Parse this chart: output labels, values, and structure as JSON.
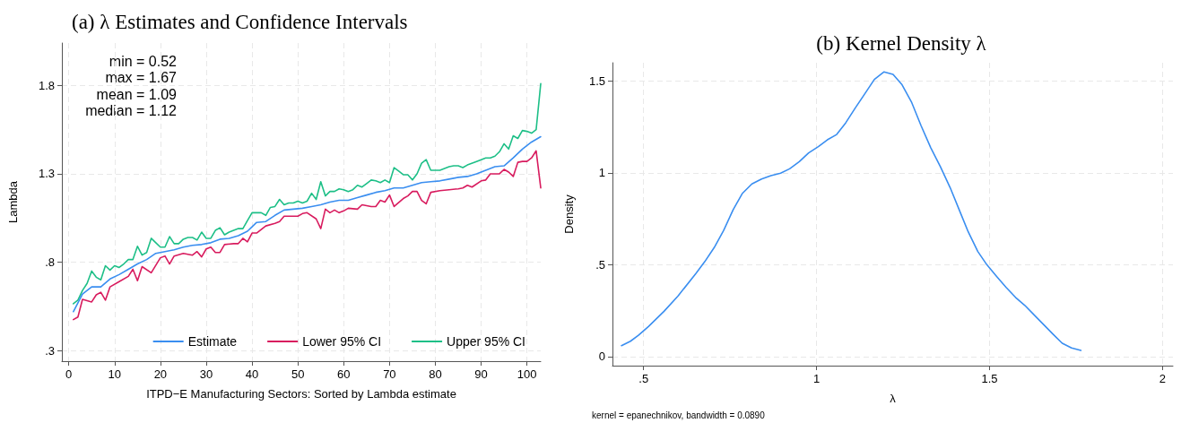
{
  "chart_data": [
    {
      "type": "line",
      "title": "(a) λ Estimates and Confidence Intervals",
      "xlabel": "ITPD−E Manufacturing Sectors: Sorted by Lambda estimate",
      "ylabel": "Lambda",
      "annotations": [
        "min = 0.52",
        "max = 1.67",
        "mean = 1.09",
        "median = 1.12"
      ],
      "xlim": [
        -1.5,
        103
      ],
      "xticks": [
        0,
        10,
        20,
        30,
        40,
        50,
        60,
        70,
        80,
        90,
        100
      ],
      "ylim": [
        0.24,
        2.04
      ],
      "yticks": [
        {
          "value": 0.3,
          "label": ".3"
        },
        {
          "value": 0.8,
          "label": ".8"
        },
        1.3,
        1.8
      ],
      "grid": true,
      "legend": "bottom right",
      "marker": "none",
      "line_style": "solid",
      "series": [
        {
          "name": "Estimate",
          "color": "#3a8ef0",
          "x": [
            1,
            3,
            5,
            7,
            9,
            11,
            13,
            15,
            17,
            19,
            21,
            23,
            25,
            27,
            29,
            31,
            33,
            35,
            37,
            39,
            41,
            43,
            45,
            47,
            49,
            51,
            53,
            55,
            57,
            59,
            61,
            63,
            65,
            67,
            69,
            71,
            73,
            75,
            77,
            79,
            81,
            83,
            85,
            87,
            89,
            91,
            93,
            95,
            97,
            99,
            101,
            103
          ],
          "values": [
            0.52,
            0.62,
            0.66,
            0.66,
            0.705,
            0.73,
            0.76,
            0.79,
            0.815,
            0.85,
            0.86,
            0.87,
            0.885,
            0.895,
            0.9,
            0.91,
            0.93,
            0.935,
            0.95,
            0.975,
            1.025,
            1.03,
            1.065,
            1.095,
            1.1,
            1.105,
            1.115,
            1.125,
            1.14,
            1.15,
            1.15,
            1.165,
            1.18,
            1.195,
            1.205,
            1.22,
            1.22,
            1.235,
            1.25,
            1.255,
            1.26,
            1.27,
            1.28,
            1.285,
            1.3,
            1.32,
            1.34,
            1.345,
            1.39,
            1.44,
            1.48,
            1.51
          ]
        },
        {
          "name": "Lower 95% CI",
          "color": "#d81b5e",
          "x": [
            1,
            2,
            3,
            5,
            6,
            7,
            8,
            9,
            11,
            13,
            14,
            15,
            16,
            18,
            20,
            21,
            22,
            23,
            25,
            27,
            28,
            29,
            30,
            31,
            32,
            33,
            34,
            36,
            37,
            38,
            39,
            40,
            41,
            43,
            45,
            46,
            47,
            49,
            50,
            51,
            52,
            54,
            55,
            56,
            57,
            58,
            59,
            60,
            61,
            63,
            64,
            66,
            67,
            68,
            69,
            70,
            71,
            73,
            74,
            75,
            76,
            77,
            78,
            79,
            81,
            83,
            85,
            86,
            87,
            88,
            90,
            91,
            92,
            94,
            95,
            96,
            97,
            98,
            99,
            100,
            101,
            102,
            103
          ],
          "values": [
            0.475,
            0.49,
            0.59,
            0.575,
            0.615,
            0.63,
            0.585,
            0.66,
            0.69,
            0.72,
            0.76,
            0.695,
            0.775,
            0.74,
            0.825,
            0.835,
            0.79,
            0.835,
            0.85,
            0.84,
            0.86,
            0.83,
            0.875,
            0.885,
            0.855,
            0.855,
            0.9,
            0.905,
            0.905,
            0.935,
            0.915,
            0.965,
            0.965,
            1.005,
            1.02,
            1.03,
            1.06,
            1.06,
            1.06,
            1.075,
            1.08,
            1.045,
            0.99,
            1.1,
            1.08,
            1.095,
            1.08,
            1.09,
            1.105,
            1.1,
            1.125,
            1.115,
            1.115,
            1.15,
            1.14,
            1.18,
            1.115,
            1.16,
            1.175,
            1.2,
            1.2,
            1.15,
            1.13,
            1.195,
            1.205,
            1.21,
            1.215,
            1.22,
            1.235,
            1.225,
            1.26,
            1.265,
            1.3,
            1.3,
            1.325,
            1.31,
            1.285,
            1.365,
            1.37,
            1.37,
            1.39,
            1.43,
            1.22
          ]
        },
        {
          "name": "Upper 95% CI",
          "color": "#1dbf87",
          "x": [
            1,
            2,
            3,
            4,
            5,
            6,
            7,
            8,
            9,
            10,
            11,
            12,
            13,
            14,
            15,
            16,
            17,
            18,
            19,
            20,
            21,
            22,
            23,
            24,
            25,
            26,
            27,
            28,
            29,
            30,
            31,
            32,
            33,
            34,
            35,
            36,
            37,
            38,
            39,
            40,
            41,
            42,
            43,
            44,
            45,
            46,
            47,
            48,
            49,
            50,
            51,
            52,
            53,
            54,
            55,
            56,
            57,
            58,
            59,
            60,
            61,
            62,
            63,
            64,
            65,
            66,
            67,
            68,
            69,
            70,
            71,
            72,
            73,
            74,
            75,
            76,
            77,
            78,
            79,
            81,
            83,
            84,
            85,
            86,
            87,
            89,
            90,
            91,
            92,
            93,
            94,
            95,
            96,
            97,
            98,
            99,
            100,
            101,
            102,
            103
          ],
          "values": [
            0.565,
            0.585,
            0.64,
            0.68,
            0.75,
            0.715,
            0.7,
            0.78,
            0.755,
            0.78,
            0.77,
            0.79,
            0.815,
            0.815,
            0.89,
            0.84,
            0.855,
            0.935,
            0.91,
            0.885,
            0.885,
            0.945,
            0.905,
            0.905,
            0.93,
            0.94,
            0.94,
            0.925,
            0.97,
            0.935,
            0.935,
            0.98,
            0.995,
            0.955,
            0.97,
            0.98,
            0.99,
            0.99,
            1.035,
            1.08,
            1.08,
            1.08,
            1.065,
            1.11,
            1.115,
            1.155,
            1.125,
            1.135,
            1.135,
            1.145,
            1.135,
            1.145,
            1.19,
            1.155,
            1.255,
            1.175,
            1.2,
            1.2,
            1.215,
            1.21,
            1.2,
            1.21,
            1.235,
            1.225,
            1.245,
            1.265,
            1.26,
            1.25,
            1.265,
            1.25,
            1.335,
            1.315,
            1.295,
            1.295,
            1.265,
            1.3,
            1.36,
            1.38,
            1.32,
            1.32,
            1.34,
            1.345,
            1.345,
            1.335,
            1.35,
            1.37,
            1.38,
            1.39,
            1.39,
            1.4,
            1.425,
            1.47,
            1.44,
            1.515,
            1.5,
            1.545,
            1.54,
            1.53,
            1.55,
            1.81
          ]
        }
      ]
    },
    {
      "type": "line",
      "title": "(b) Kernel Density λ",
      "xlabel": "λ",
      "ylabel": "Density",
      "annotations": [
        "kernel = epanechnikov, bandwidth = 0.0890"
      ],
      "xlim": [
        0.41,
        2.03
      ],
      "xticks": [
        {
          "value": 0.5,
          "label": ".5"
        },
        1,
        1.5,
        2
      ],
      "ylim": [
        -0.05,
        1.6
      ],
      "yticks": [
        0,
        {
          "value": 0.5,
          "label": ".5"
        },
        1,
        1.5
      ],
      "grid": true,
      "marker": "none",
      "line_style": "solid",
      "series": [
        {
          "color": "#3a8ef0",
          "x": [
            0.436,
            0.462,
            0.485,
            0.514,
            0.559,
            0.599,
            0.651,
            0.677,
            0.704,
            0.731,
            0.759,
            0.785,
            0.813,
            0.841,
            0.868,
            0.896,
            0.922,
            0.95,
            0.977,
            1.005,
            1.031,
            1.058,
            1.084,
            1.112,
            1.139,
            1.167,
            1.195,
            1.221,
            1.247,
            1.275,
            1.302,
            1.33,
            1.358,
            1.386,
            1.412,
            1.438,
            1.466,
            1.492,
            1.521,
            1.548,
            1.575,
            1.602,
            1.63,
            1.658,
            1.684,
            1.71,
            1.737,
            1.764
          ],
          "values": [
            0.059,
            0.083,
            0.115,
            0.163,
            0.246,
            0.328,
            0.452,
            0.517,
            0.593,
            0.685,
            0.8,
            0.887,
            0.94,
            0.967,
            0.985,
            0.998,
            1.022,
            1.061,
            1.109,
            1.143,
            1.18,
            1.209,
            1.272,
            1.354,
            1.43,
            1.509,
            1.55,
            1.537,
            1.48,
            1.383,
            1.257,
            1.137,
            1.033,
            0.92,
            0.8,
            0.68,
            0.572,
            0.5,
            0.435,
            0.376,
            0.322,
            0.278,
            0.224,
            0.17,
            0.12,
            0.072,
            0.046,
            0.033
          ]
        }
      ]
    }
  ]
}
